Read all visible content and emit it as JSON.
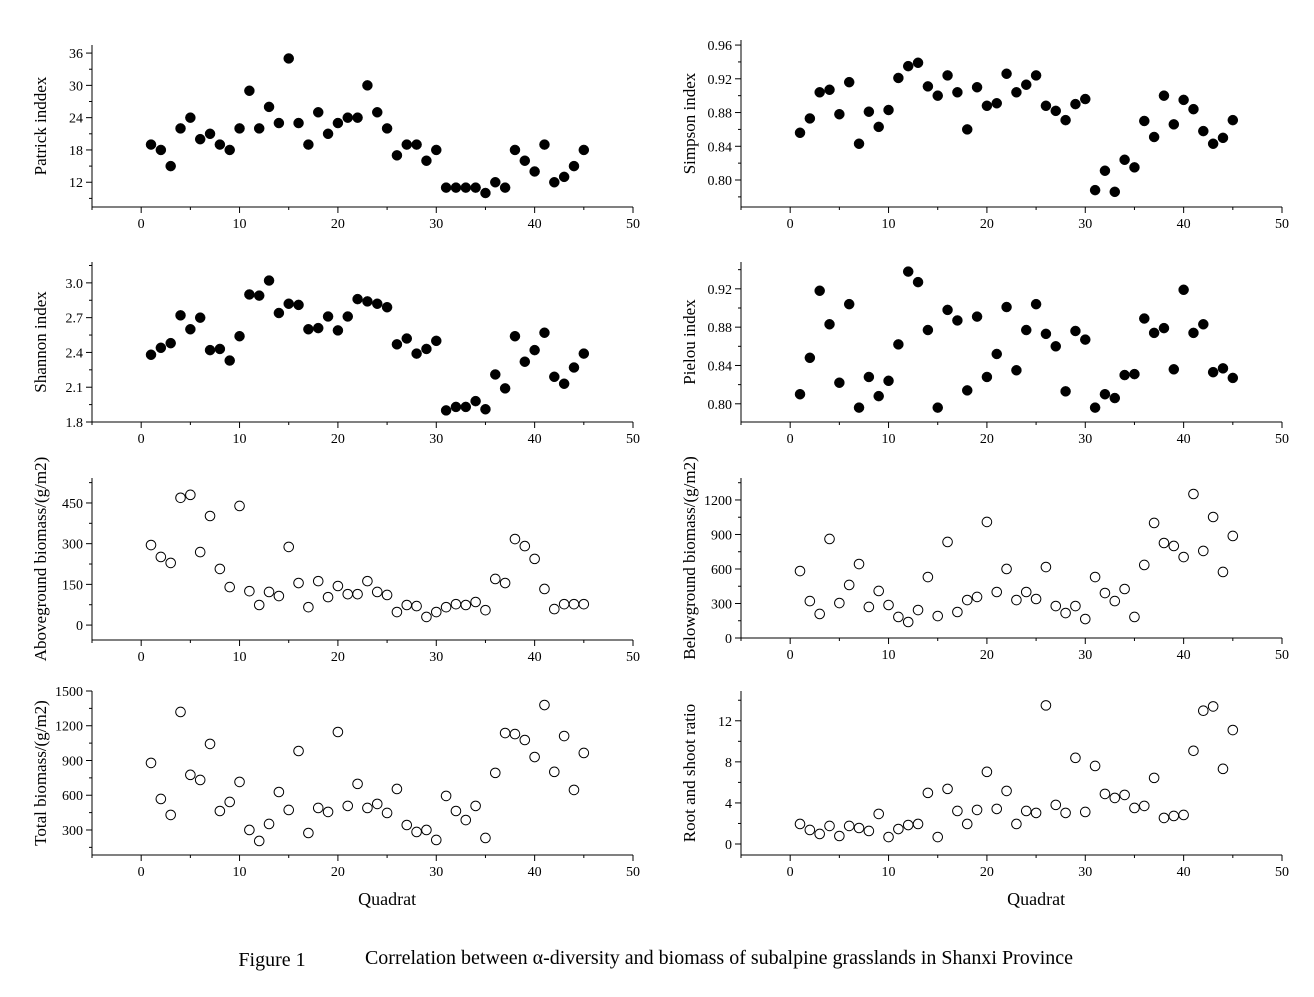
{
  "caption": {
    "label": "Figure 1",
    "text": "Correlation between α-diversity and biomass of subalpine grasslands in Shanxi Province"
  },
  "chart_data": [
    {
      "type": "scatter",
      "ylabel": "Patrick inddex",
      "xlabel": "",
      "marker": "filled",
      "xlim": [
        -5,
        50
      ],
      "ylim": [
        7.4,
        37.5
      ],
      "xticks": [
        0,
        10,
        20,
        30,
        40,
        50
      ],
      "yticks": [
        12,
        18,
        24,
        30,
        36
      ],
      "x": [
        1,
        2,
        3,
        4,
        5,
        6,
        7,
        8,
        9,
        10,
        11,
        12,
        13,
        14,
        15,
        16,
        17,
        18,
        19,
        20,
        21,
        22,
        23,
        24,
        25,
        26,
        27,
        28,
        29,
        30,
        31,
        32,
        33,
        34,
        35,
        36,
        37,
        38,
        39,
        40,
        41,
        42,
        43,
        44,
        45
      ],
      "y": [
        19,
        18,
        15,
        22,
        24,
        20,
        21,
        19,
        18,
        22,
        29,
        22,
        26,
        23,
        35,
        23,
        19,
        25,
        21,
        23,
        24,
        24,
        30,
        25,
        22,
        17,
        19,
        19,
        16,
        18,
        11,
        11,
        11,
        11,
        10,
        12,
        11,
        18,
        16,
        14,
        19,
        12,
        13,
        15,
        18
      ]
    },
    {
      "type": "scatter",
      "ylabel": "Simpson index",
      "xlabel": "",
      "marker": "filled",
      "xlim": [
        -5,
        50
      ],
      "ylim": [
        0.768,
        0.966
      ],
      "xticks": [
        0,
        10,
        20,
        30,
        40,
        50
      ],
      "yticks": [
        "0.80",
        "0.84",
        "0.88",
        "0.92",
        "0.96"
      ],
      "x": [
        1,
        2,
        3,
        4,
        5,
        6,
        7,
        8,
        9,
        10,
        11,
        12,
        13,
        14,
        15,
        16,
        17,
        18,
        19,
        20,
        21,
        22,
        23,
        24,
        25,
        26,
        27,
        28,
        29,
        30,
        31,
        32,
        33,
        34,
        35,
        36,
        37,
        38,
        39,
        40,
        41,
        42,
        43,
        44,
        45
      ],
      "y": [
        0.856,
        0.873,
        0.904,
        0.907,
        0.878,
        0.916,
        0.843,
        0.881,
        0.863,
        0.883,
        0.921,
        0.935,
        0.939,
        0.911,
        0.9,
        0.924,
        0.904,
        0.86,
        0.91,
        0.888,
        0.891,
        0.926,
        0.904,
        0.913,
        0.924,
        0.888,
        0.882,
        0.871,
        0.89,
        0.896,
        0.788,
        0.811,
        0.786,
        0.824,
        0.815,
        0.87,
        0.851,
        0.9,
        0.866,
        0.895,
        0.884,
        0.858,
        0.843,
        0.85,
        0.871
      ]
    },
    {
      "type": "scatter",
      "ylabel": "Shannon index",
      "xlabel": "",
      "marker": "filled",
      "xlim": [
        -5,
        50
      ],
      "ylim": [
        1.8,
        3.18
      ],
      "xticks": [
        0,
        10,
        20,
        30,
        40,
        50
      ],
      "yticks": [
        "1.8",
        "2.1",
        "2.4",
        "2.7",
        "3.0"
      ],
      "x": [
        1,
        2,
        3,
        4,
        5,
        6,
        7,
        8,
        9,
        10,
        11,
        12,
        13,
        14,
        15,
        16,
        17,
        18,
        19,
        20,
        21,
        22,
        23,
        24,
        25,
        26,
        27,
        28,
        29,
        30,
        31,
        32,
        33,
        34,
        35,
        36,
        37,
        38,
        39,
        40,
        41,
        42,
        43,
        44,
        45
      ],
      "y": [
        2.38,
        2.44,
        2.48,
        2.72,
        2.6,
        2.7,
        2.42,
        2.43,
        2.33,
        2.54,
        2.9,
        2.89,
        3.02,
        2.74,
        2.82,
        2.81,
        2.6,
        2.61,
        2.71,
        2.59,
        2.71,
        2.86,
        2.84,
        2.82,
        2.79,
        2.47,
        2.52,
        2.39,
        2.43,
        2.5,
        1.9,
        1.93,
        1.93,
        1.98,
        1.91,
        2.21,
        2.09,
        2.54,
        2.32,
        2.42,
        2.57,
        2.19,
        2.13,
        2.27,
        2.39
      ]
    },
    {
      "type": "scatter",
      "ylabel": "Pielou index",
      "xlabel": "",
      "marker": "filled",
      "xlim": [
        -5,
        50
      ],
      "ylim": [
        0.781,
        0.948
      ],
      "xticks": [
        0,
        10,
        20,
        30,
        40,
        50
      ],
      "yticks": [
        "0.80",
        "0.84",
        "0.88",
        "0.92"
      ],
      "x": [
        1,
        2,
        3,
        4,
        5,
        6,
        7,
        8,
        9,
        10,
        11,
        12,
        13,
        14,
        15,
        16,
        17,
        18,
        19,
        20,
        21,
        22,
        23,
        24,
        25,
        26,
        27,
        28,
        29,
        30,
        31,
        32,
        33,
        34,
        35,
        36,
        37,
        38,
        39,
        40,
        41,
        42,
        43,
        44,
        45
      ],
      "y": [
        0.81,
        0.848,
        0.918,
        0.883,
        0.822,
        0.904,
        0.796,
        0.828,
        0.808,
        0.824,
        0.862,
        0.938,
        0.927,
        0.877,
        0.796,
        0.898,
        0.887,
        0.814,
        0.891,
        0.828,
        0.852,
        0.901,
        0.835,
        0.877,
        0.904,
        0.873,
        0.86,
        0.813,
        0.876,
        0.867,
        0.796,
        0.81,
        0.806,
        0.83,
        0.831,
        0.889,
        0.874,
        0.879,
        0.836,
        0.919,
        0.874,
        0.883,
        0.833,
        0.837,
        0.827
      ]
    },
    {
      "type": "scatter",
      "ylabel": "Aboveground biomass/(g/m2)",
      "xlabel": "",
      "marker": "open",
      "xlim": [
        -5,
        50
      ],
      "ylim": [
        -55,
        542
      ],
      "xticks": [
        0,
        10,
        20,
        30,
        40,
        50
      ],
      "yticks": [
        0,
        150,
        300,
        450
      ],
      "x": [
        1,
        2,
        3,
        4,
        5,
        6,
        7,
        8,
        9,
        10,
        11,
        12,
        13,
        14,
        15,
        16,
        17,
        18,
        19,
        20,
        21,
        22,
        23,
        24,
        25,
        26,
        27,
        28,
        29,
        30,
        31,
        32,
        33,
        34,
        35,
        36,
        37,
        38,
        39,
        40,
        41,
        42,
        43,
        44,
        45
      ],
      "y": [
        295,
        251,
        229,
        469,
        480,
        269,
        402,
        207,
        140,
        439,
        125,
        74,
        122,
        107,
        288,
        155,
        66,
        162,
        103,
        144,
        114,
        114,
        162,
        122,
        111,
        48,
        74,
        70,
        30,
        48,
        66,
        77,
        74,
        85,
        55,
        170,
        155,
        317,
        291,
        244,
        133,
        59,
        77,
        77,
        77
      ]
    },
    {
      "type": "scatter",
      "ylabel": "Belowground biomass/(g/m2)",
      "xlabel": "",
      "marker": "open",
      "xlim": [
        -5,
        50
      ],
      "ylim": [
        0,
        1391
      ],
      "xticks": [
        0,
        10,
        20,
        30,
        40,
        50
      ],
      "yticks": [
        0,
        300,
        600,
        900,
        1200
      ],
      "x": [
        1,
        2,
        3,
        4,
        5,
        6,
        7,
        8,
        9,
        10,
        11,
        12,
        13,
        14,
        15,
        16,
        17,
        18,
        19,
        20,
        21,
        22,
        23,
        24,
        25,
        26,
        27,
        28,
        29,
        30,
        31,
        32,
        33,
        34,
        35,
        36,
        37,
        38,
        39,
        40,
        41,
        42,
        43,
        44,
        45
      ],
      "y": [
        582,
        321,
        209,
        861,
        304,
        461,
        643,
        270,
        409,
        287,
        183,
        139,
        243,
        530,
        191,
        835,
        226,
        330,
        357,
        1009,
        400,
        600,
        330,
        400,
        339,
        617,
        278,
        217,
        278,
        165,
        530,
        391,
        321,
        426,
        183,
        635,
        1000,
        826,
        800,
        704,
        1252,
        757,
        1052,
        574,
        887
      ]
    },
    {
      "type": "scatter",
      "ylabel": "Total biomass/(g/m2)",
      "xlabel": "Quadrat",
      "marker": "open",
      "xlim": [
        -5,
        50
      ],
      "ylim": [
        84,
        1500
      ],
      "xticks": [
        0,
        10,
        20,
        30,
        40,
        50
      ],
      "yticks": [
        300,
        600,
        900,
        1200,
        1500
      ],
      "x": [
        1,
        2,
        3,
        4,
        5,
        6,
        7,
        8,
        9,
        10,
        11,
        12,
        13,
        14,
        15,
        16,
        17,
        18,
        19,
        20,
        21,
        22,
        23,
        24,
        25,
        26,
        27,
        28,
        29,
        30,
        31,
        32,
        33,
        34,
        35,
        36,
        37,
        38,
        39,
        40,
        41,
        42,
        43,
        44,
        45
      ],
      "y": [
        879,
        568,
        430,
        1319,
        776,
        732,
        1043,
        464,
        542,
        715,
        300,
        205,
        352,
        628,
        473,
        982,
        274,
        490,
        456,
        1146,
        508,
        698,
        490,
        525,
        447,
        654,
        343,
        283,
        300,
        214,
        594,
        464,
        386,
        508,
        231,
        793,
        1137,
        1128,
        1077,
        930,
        1379,
        802,
        1111,
        646,
        965
      ]
    },
    {
      "type": "scatter",
      "ylabel": "Root and shoot ratio",
      "xlabel": "Quadrat",
      "marker": "open",
      "xlim": [
        -5,
        50
      ],
      "ylim": [
        -1.07,
        14.9
      ],
      "xticks": [
        0,
        10,
        20,
        30,
        40,
        50
      ],
      "yticks": [
        0,
        4,
        8,
        12
      ],
      "x": [
        1,
        2,
        3,
        4,
        5,
        6,
        7,
        8,
        9,
        10,
        11,
        12,
        13,
        14,
        15,
        16,
        17,
        18,
        19,
        20,
        21,
        22,
        23,
        24,
        25,
        26,
        27,
        28,
        29,
        30,
        31,
        32,
        33,
        34,
        35,
        36,
        37,
        38,
        39,
        40,
        41,
        42,
        43,
        44,
        45
      ],
      "y": [
        1.95,
        1.37,
        0.98,
        1.76,
        0.78,
        1.76,
        1.56,
        1.27,
        2.93,
        0.68,
        1.46,
        1.85,
        1.95,
        4.98,
        0.68,
        5.37,
        3.22,
        1.95,
        3.32,
        7.03,
        3.42,
        5.17,
        1.95,
        3.22,
        3.03,
        13.5,
        3.81,
        3.03,
        8.39,
        3.12,
        7.6,
        4.88,
        4.49,
        4.78,
        3.51,
        3.71,
        6.44,
        2.54,
        2.73,
        2.83,
        9.08,
        12.98,
        13.4,
        7.32,
        11.1
      ]
    }
  ]
}
